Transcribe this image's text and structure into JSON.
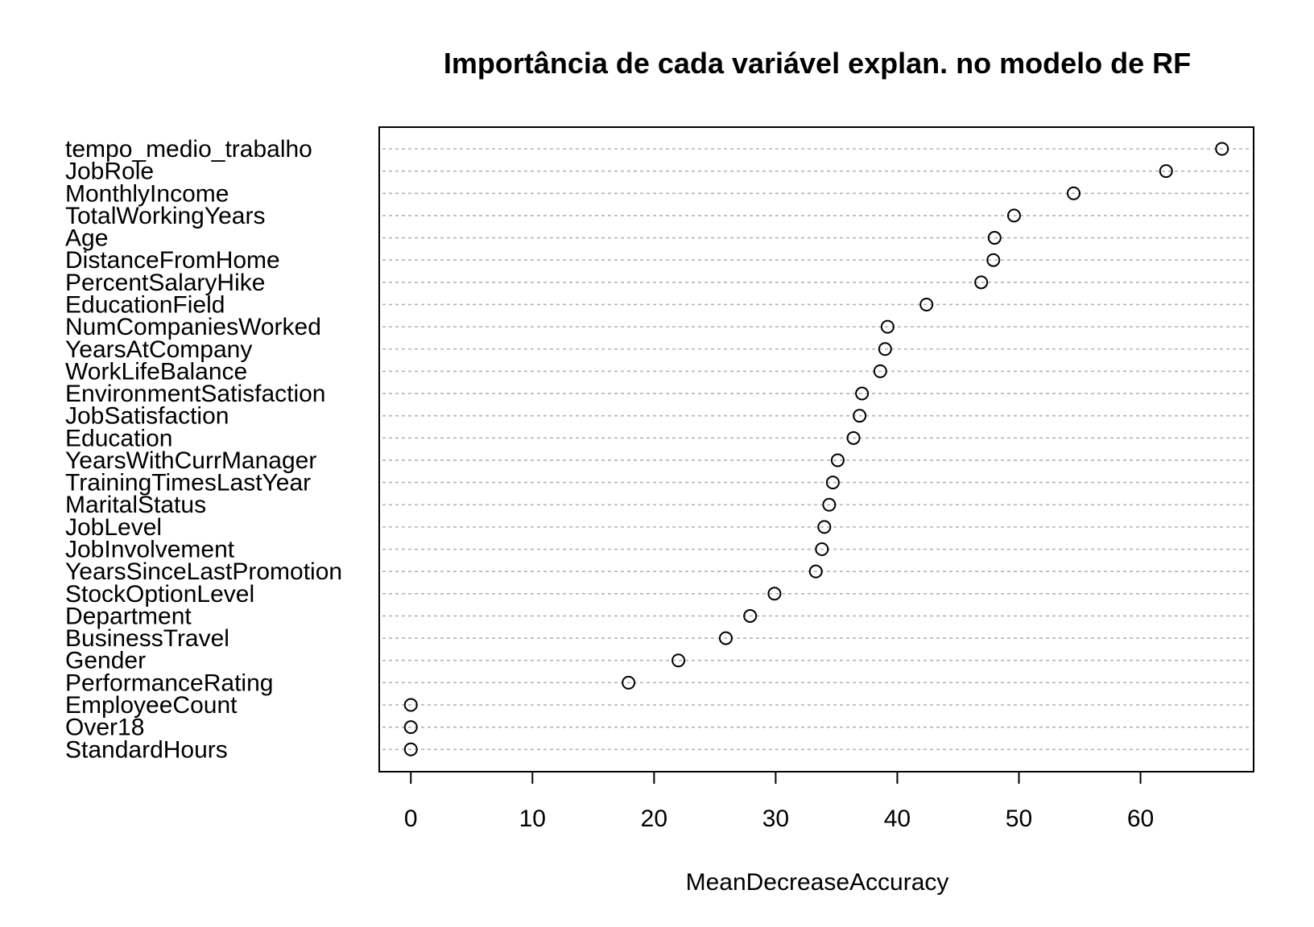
{
  "chart_data": {
    "type": "scatter",
    "title": "Importância de cada variável explan. no modelo de RF",
    "xlabel": "MeanDecreaseAccuracy",
    "ylabel": "",
    "xlim": [
      -2.6,
      69.3
    ],
    "xticks": [
      0,
      10,
      20,
      30,
      40,
      50,
      60
    ],
    "grid": true,
    "categories": [
      "tempo_medio_trabalho",
      "JobRole",
      "MonthlyIncome",
      "TotalWorkingYears",
      "Age",
      "DistanceFromHome",
      "PercentSalaryHike",
      "EducationField",
      "NumCompaniesWorked",
      "YearsAtCompany",
      "WorkLifeBalance",
      "EnvironmentSatisfaction",
      "JobSatisfaction",
      "Education",
      "YearsWithCurrManager",
      "TrainingTimesLastYear",
      "MaritalStatus",
      "JobLevel",
      "JobInvolvement",
      "YearsSinceLastPromotion",
      "StockOptionLevel",
      "Department",
      "BusinessTravel",
      "Gender",
      "PerformanceRating",
      "EmployeeCount",
      "Over18",
      "StandardHours"
    ],
    "values": [
      66.7,
      62.1,
      54.5,
      49.6,
      48.0,
      47.9,
      46.9,
      42.4,
      39.2,
      39.0,
      38.6,
      37.1,
      36.9,
      36.4,
      35.1,
      34.7,
      34.4,
      34.0,
      33.8,
      33.3,
      29.9,
      27.9,
      25.9,
      22.0,
      17.9,
      0,
      0,
      0
    ]
  }
}
